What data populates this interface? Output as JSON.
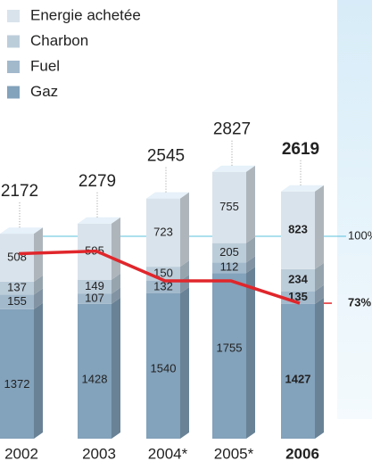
{
  "chart_data": {
    "type": "bar",
    "categories": [
      "2002",
      "2003",
      "2004*",
      "2005*",
      "2006"
    ],
    "series": [
      {
        "name": "Gaz",
        "color": "#83a2bb",
        "values": [
          1372,
          1428,
          1540,
          1755,
          1427
        ]
      },
      {
        "name": "Fuel",
        "color": "#a2b9cc",
        "values": [
          155,
          107,
          132,
          112,
          135
        ]
      },
      {
        "name": "Charbon",
        "color": "#bccdda",
        "values": [
          137,
          149,
          150,
          205,
          234
        ]
      },
      {
        "name": "Energie achetée",
        "color": "#d9e3eb",
        "values": [
          508,
          595,
          723,
          755,
          823
        ]
      }
    ],
    "totals": [
      2172,
      2279,
      2545,
      2827,
      2619
    ],
    "ylim": [
      0,
      2900
    ],
    "line": {
      "color": "#e0262b",
      "values": [
        93,
        94,
        82,
        82,
        73
      ],
      "axis": "y2"
    },
    "y2lim": [
      0,
      100
    ],
    "y2ticks": [
      {
        "value": 100,
        "label": "100%"
      },
      {
        "value": 73,
        "label": "73%"
      }
    ]
  }
}
